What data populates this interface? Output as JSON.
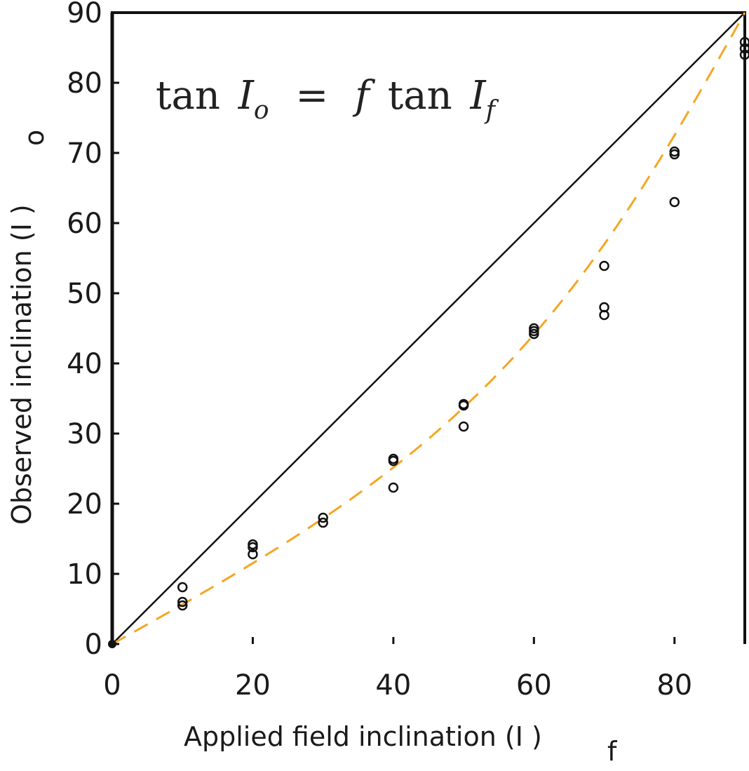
{
  "chart_data": {
    "type": "scatter",
    "annotation": {
      "fn": "tan",
      "lhs_var": "I",
      "lhs_sub": "o",
      "equals": "=",
      "coef": "f",
      "rhs_var": "I",
      "rhs_sub": "f"
    },
    "xlabel": "Applied field inclination (I  )",
    "xlabel_sub": "f",
    "ylabel": "Observed inclination (I  )",
    "ylabel_sub": "o",
    "xlim": [
      0,
      90
    ],
    "ylim": [
      0,
      90
    ],
    "xticks": [
      0,
      20,
      40,
      60,
      80
    ],
    "yticks": [
      0,
      10,
      20,
      30,
      40,
      50,
      60,
      70,
      80,
      90
    ],
    "grid": false,
    "points": [
      [
        0,
        0
      ],
      [
        10,
        8.1
      ],
      [
        10,
        6.0
      ],
      [
        10,
        5.5
      ],
      [
        20,
        14.2
      ],
      [
        20,
        13.8
      ],
      [
        20,
        12.8
      ],
      [
        30,
        18.0
      ],
      [
        30,
        17.3
      ],
      [
        40,
        26.4
      ],
      [
        40,
        26.1
      ],
      [
        40,
        22.3
      ],
      [
        50,
        34.2
      ],
      [
        50,
        34.0
      ],
      [
        50,
        31.0
      ],
      [
        60,
        45.0
      ],
      [
        60,
        44.6
      ],
      [
        60,
        44.2
      ],
      [
        70,
        53.9
      ],
      [
        70,
        48.0
      ],
      [
        70,
        46.9
      ],
      [
        80,
        70.2
      ],
      [
        80,
        69.8
      ],
      [
        80,
        63.0
      ],
      [
        90,
        85.8
      ],
      [
        90,
        84.9
      ],
      [
        90,
        84.0
      ]
    ],
    "reference_line": {
      "style": "solid",
      "color": "#111111",
      "from": [
        0,
        0
      ],
      "to": [
        90,
        90
      ]
    },
    "fit_curve": {
      "style": "dashed",
      "color": "#f5a623",
      "f": 0.56
    },
    "colors": {
      "points": "#111111",
      "axes": "#111111"
    }
  }
}
